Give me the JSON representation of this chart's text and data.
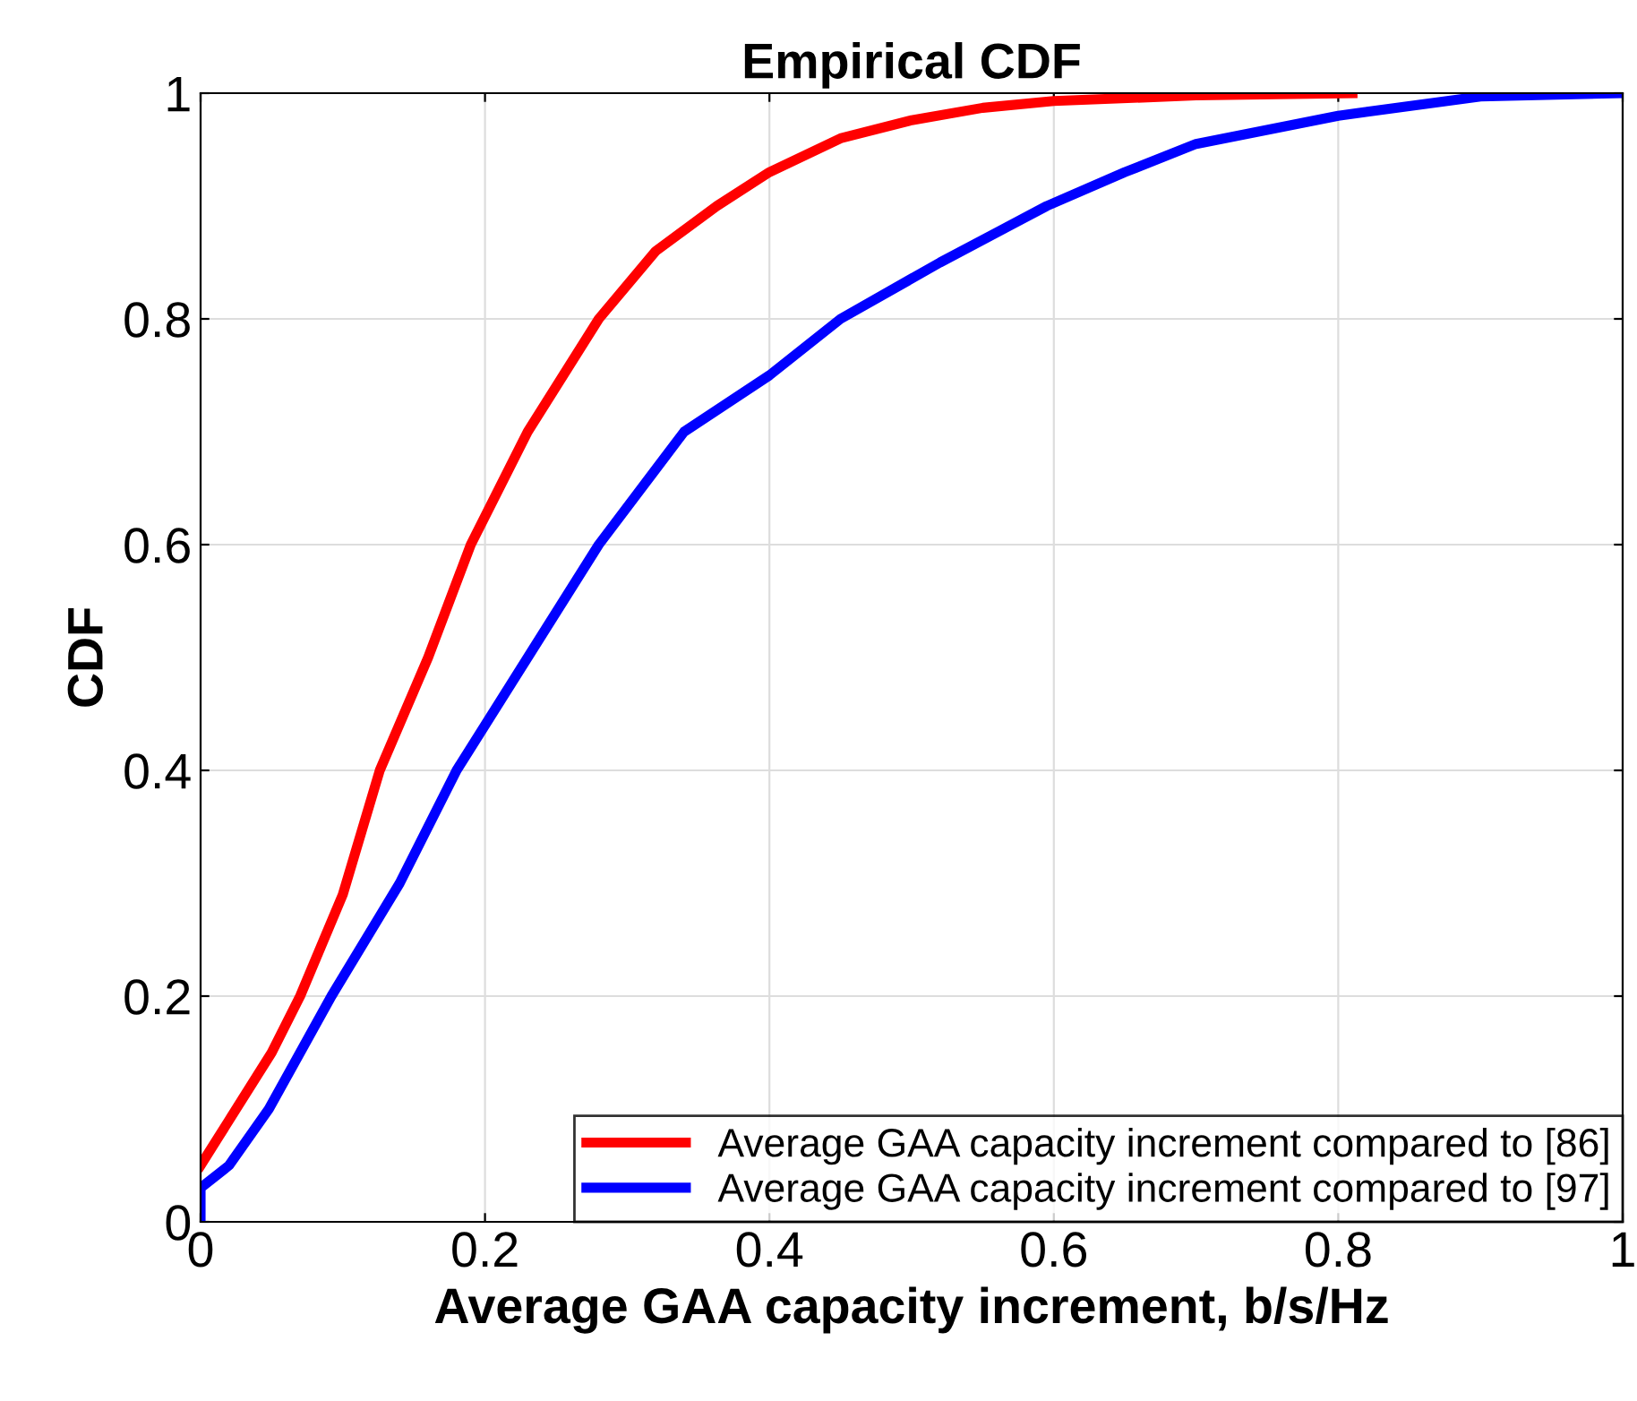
{
  "chart_data": {
    "type": "line",
    "title": "Empirical CDF",
    "xlabel": "Average GAA capacity increment, b/s/Hz",
    "ylabel": "CDF",
    "series": [
      {
        "name": "Average GAA capacity increment compared to [86]",
        "color": "#ff0000",
        "x": [
          0,
          0.02,
          0.05,
          0.07,
          0.1,
          0.126,
          0.16,
          0.19,
          0.23,
          0.28,
          0.32,
          0.363,
          0.4,
          0.45,
          0.5,
          0.55,
          0.6,
          0.7,
          0.81
        ],
        "values": [
          0.05,
          0.09,
          0.15,
          0.2,
          0.29,
          0.4,
          0.5,
          0.6,
          0.7,
          0.8,
          0.86,
          0.9,
          0.93,
          0.96,
          0.976,
          0.987,
          0.993,
          0.998,
          1
        ]
      },
      {
        "name": "Average GAA capacity increment compared to [97]",
        "color": "#0000ff",
        "x": [
          0,
          0,
          0.02,
          0.048,
          0.07,
          0.092,
          0.14,
          0.18,
          0.23,
          0.28,
          0.34,
          0.4,
          0.45,
          0.52,
          0.595,
          0.65,
          0.7,
          0.8,
          0.9,
          1
        ],
        "values": [
          0,
          0.03,
          0.05,
          0.1,
          0.15,
          0.2,
          0.3,
          0.4,
          0.5,
          0.6,
          0.7,
          0.75,
          0.8,
          0.85,
          0.9,
          0.93,
          0.955,
          0.98,
          0.997,
          1
        ]
      }
    ],
    "xlim": [
      0,
      1
    ],
    "ylim": [
      0,
      1
    ],
    "xticks": [
      0,
      0.2,
      0.4,
      0.6,
      0.8,
      1
    ],
    "yticks": [
      0,
      0.2,
      0.4,
      0.6,
      0.8,
      1
    ],
    "grid": true,
    "legend": "bottom right",
    "line_style": "solid"
  }
}
